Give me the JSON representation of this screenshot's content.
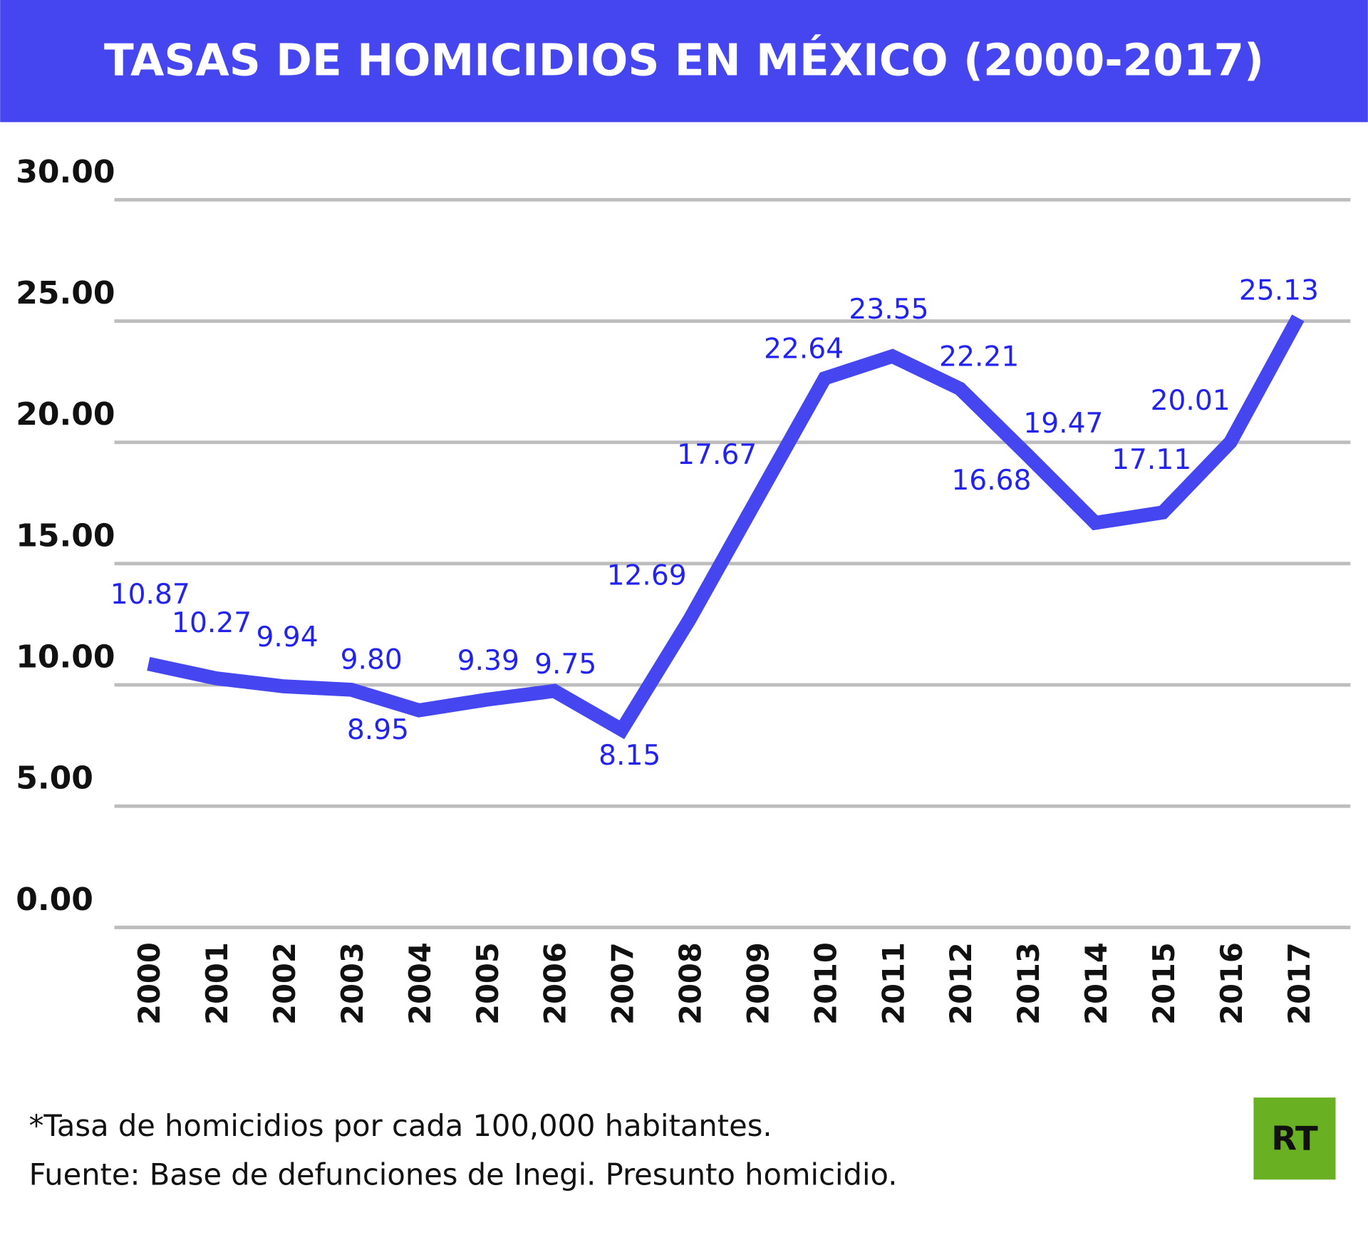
{
  "colors": {
    "header": "#4646f0",
    "line": "#4646f0",
    "label": "#2323f0",
    "grid": "#bdbdbd",
    "logo": "#6ab023"
  },
  "chart_data": {
    "type": "line",
    "title": "TASAS DE HOMICIDIOS EN MÉXICO (2000-2017)",
    "xlabel": "",
    "ylabel": "",
    "ylim": [
      0,
      30
    ],
    "grid": true,
    "yticks": [
      "0.00",
      "5.00",
      "10.00",
      "15.00",
      "20.00",
      "25.00",
      "30.00"
    ],
    "ytick_values": [
      0,
      5,
      10,
      15,
      20,
      25,
      30
    ],
    "categories": [
      "2000",
      "2001",
      "2002",
      "2003",
      "2004",
      "2005",
      "2006",
      "2007",
      "2008",
      "2009",
      "2010",
      "2011",
      "2012",
      "2013",
      "2014",
      "2015",
      "2016",
      "2017"
    ],
    "values": [
      10.87,
      10.27,
      9.94,
      9.8,
      8.95,
      9.39,
      9.75,
      8.15,
      12.69,
      17.67,
      22.64,
      23.55,
      22.21,
      19.47,
      16.68,
      17.11,
      20.01,
      25.13
    ],
    "data_labels": [
      "10.87",
      "10.27",
      "9.94",
      "9.80",
      "8.95",
      "9.39",
      "9.75",
      "8.15",
      "12.69",
      "17.67",
      "22.64",
      "23.55",
      "22.21",
      "19.47",
      "16.68",
      "17.11",
      "20.01",
      "25.13"
    ]
  },
  "footer": {
    "note": "*Tasa de homicidios por cada 100,000 habitantes.",
    "source": "Fuente: Base de defunciones de Inegi. Presunto homicidio."
  },
  "logo": {
    "text": "RT"
  }
}
